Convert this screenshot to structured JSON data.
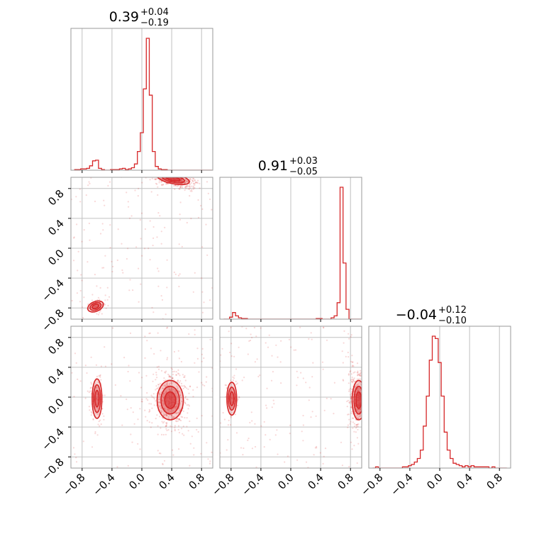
{
  "colors": {
    "accent": "#d62728",
    "grid": "#c0c0c0",
    "frame": "#999999"
  },
  "chart_data": {
    "type": "corner",
    "n_params": 3,
    "titles": [
      {
        "median": "0.39",
        "plus": "+0.04",
        "minus": "−0.19"
      },
      {
        "median": "0.91",
        "plus": "+0.03",
        "minus": "−0.05"
      },
      {
        "median": "−0.04",
        "plus": "+0.12",
        "minus": "−0.10"
      }
    ],
    "range": [
      -0.95,
      0.95
    ],
    "ticks": [
      -0.8,
      -0.4,
      0.0,
      0.4,
      0.8
    ],
    "tick_labels": [
      "−0.8",
      "−0.4",
      "0.0",
      "0.4",
      "0.8"
    ],
    "grid": true,
    "histograms": [
      {
        "param": 0,
        "bin_edges_start": -0.9,
        "bin_width": 0.04,
        "counts": [
          1,
          1,
          2,
          2,
          3,
          7,
          15,
          16,
          3,
          1,
          0,
          0,
          1,
          1,
          1,
          2,
          3,
          1,
          2,
          4,
          10,
          30,
          60,
          130,
          211,
          120,
          30,
          6,
          2,
          1,
          1,
          0,
          0,
          0,
          0,
          0,
          0,
          0,
          0,
          0,
          0,
          0,
          0,
          0,
          0,
          0
        ]
      },
      {
        "param": 1,
        "bin_edges_start": -0.9,
        "bin_width": 0.04,
        "counts": [
          0,
          0,
          3,
          10,
          5,
          2,
          1,
          1,
          0,
          0,
          0,
          0,
          0,
          0,
          0,
          0,
          0,
          0,
          0,
          0,
          0,
          0,
          0,
          0,
          0,
          0,
          0,
          0,
          0,
          0,
          0,
          1,
          1,
          0,
          0,
          0,
          2,
          5,
          25,
          200,
          85,
          15,
          0,
          0,
          0,
          0
        ]
      },
      {
        "param": 2,
        "bin_edges_start": -0.9,
        "bin_width": 0.04,
        "counts": [
          0,
          1,
          0,
          0,
          0,
          0,
          0,
          0,
          0,
          0,
          1,
          1,
          2,
          3,
          5,
          8,
          15,
          35,
          60,
          90,
          110,
          108,
          88,
          60,
          30,
          15,
          8,
          4,
          3,
          2,
          1,
          2,
          1,
          2,
          1,
          1,
          1,
          1,
          1,
          0,
          1,
          0,
          0,
          0,
          0
        ]
      }
    ],
    "pairs": [
      {
        "x_param": 0,
        "y_param": 1,
        "modes": [
          {
            "x": 0.42,
            "y": 0.93,
            "sx": 0.1,
            "sy": 0.03,
            "rot": -0.2,
            "weight": 0.85
          },
          {
            "x": -0.62,
            "y": -0.78,
            "sx": 0.05,
            "sy": 0.03,
            "rot": 0.4,
            "weight": 0.15
          }
        ]
      },
      {
        "x_param": 0,
        "y_param": 2,
        "modes": [
          {
            "x": 0.38,
            "y": -0.04,
            "sx": 0.08,
            "sy": 0.12,
            "rot": 0,
            "weight": 0.85
          },
          {
            "x": -0.6,
            "y": -0.02,
            "sx": 0.03,
            "sy": 0.12,
            "rot": 0,
            "weight": 0.15
          }
        ]
      },
      {
        "x_param": 1,
        "y_param": 2,
        "modes": [
          {
            "x": 0.91,
            "y": -0.04,
            "sx": 0.04,
            "sy": 0.12,
            "rot": 0,
            "weight": 0.85
          },
          {
            "x": -0.79,
            "y": -0.02,
            "sx": 0.03,
            "sy": 0.1,
            "rot": 0,
            "weight": 0.15
          }
        ]
      }
    ]
  }
}
